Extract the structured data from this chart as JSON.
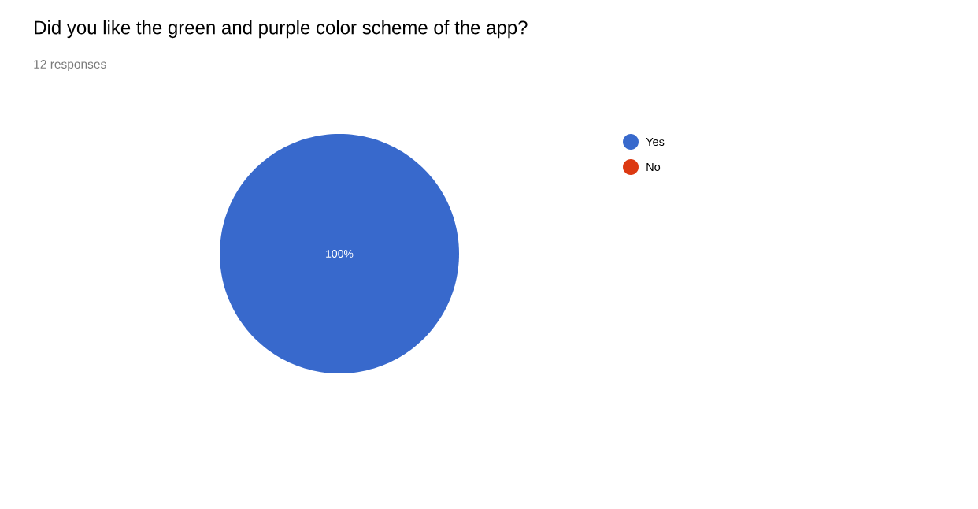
{
  "chart_data": {
    "type": "pie",
    "title": "Did you like the green and purple color scheme of the app?",
    "subtitle": "12 responses",
    "categories": [
      "Yes",
      "No"
    ],
    "values": [
      100,
      0
    ],
    "colors": [
      "#3869cc",
      "#dc3912"
    ],
    "value_labels": [
      "100%",
      null
    ],
    "legend": "right"
  }
}
